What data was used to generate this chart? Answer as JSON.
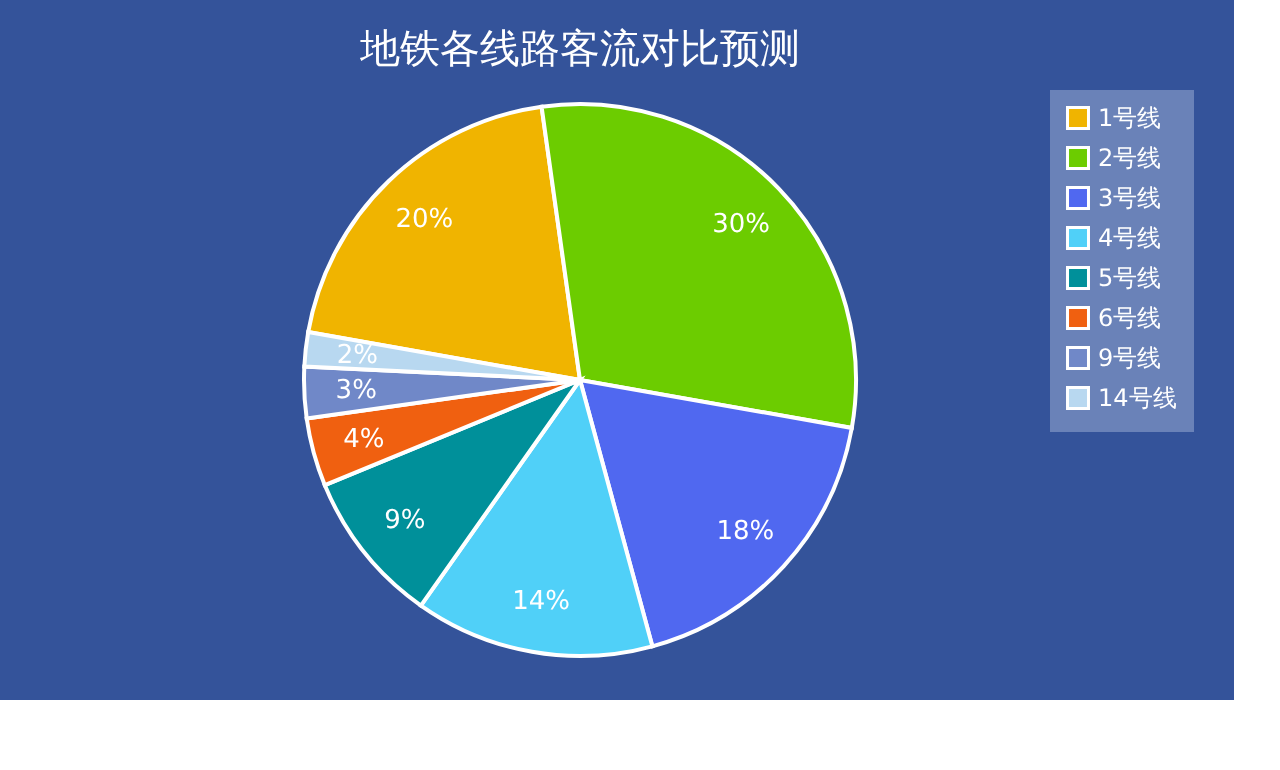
{
  "chart_data": {
    "type": "pie",
    "title": "地铁各线路客流对比预测",
    "categories": [
      "1号线",
      "2号线",
      "3号线",
      "4号线",
      "5号线",
      "6号线",
      "9号线",
      "14号线"
    ],
    "values": [
      20,
      30,
      18,
      14,
      9,
      4,
      3,
      2
    ],
    "value_labels": [
      "20%",
      "30%",
      "18%",
      "14%",
      "9%",
      "4%",
      "3%",
      "2%"
    ],
    "colors": [
      "#f0b400",
      "#6ccc00",
      "#5068f0",
      "#50d0f8",
      "#00909a",
      "#f06010",
      "#7088c8",
      "#b8d8f0"
    ],
    "legend": "right"
  }
}
